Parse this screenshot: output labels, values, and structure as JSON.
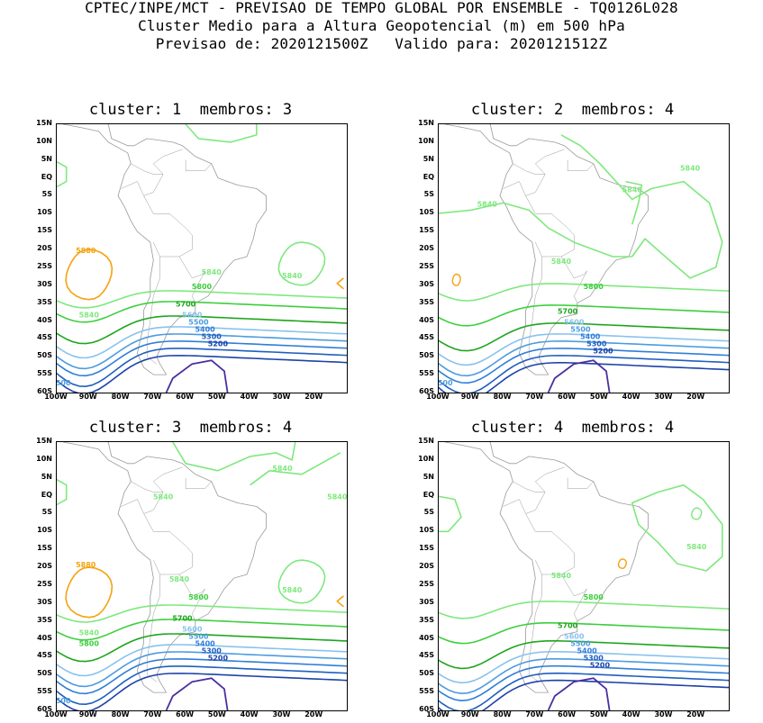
{
  "header": {
    "line1": "CPTEC/INPE/MCT - PREVISAO DE TEMPO GLOBAL POR ENSEMBLE - TQ0126L028",
    "line2": "Cluster Medio para a Altura Geopotencial (m) em 500 hPa",
    "line3": "Previsao de: 2020121500Z   Valido para: 2020121512Z"
  },
  "axes": {
    "lat_labels": [
      "15N",
      "10N",
      "5N",
      "EQ",
      "5S",
      "10S",
      "15S",
      "20S",
      "25S",
      "30S",
      "35S",
      "40S",
      "45S",
      "50S",
      "55S",
      "60S"
    ],
    "lon_labels": [
      "100W",
      "90W",
      "80W",
      "70W",
      "60W",
      "50W",
      "40W",
      "30W",
      "20W"
    ],
    "lat_range": [
      15,
      -60
    ],
    "lon_range": [
      -100,
      -10
    ]
  },
  "colors": {
    "c5880": "#f5a20f",
    "c5840": "#7ee87e",
    "c5800": "#3ccf3c",
    "c5700": "#1ea51e",
    "c5600": "#88c2ee",
    "c5500": "#4c9be0",
    "c5400": "#2f7ed8",
    "c5300": "#1f5fc0",
    "c5200": "#1d43a8",
    "c5100": "#4b2ea0",
    "coast": "#9a9a9a"
  },
  "panels": [
    {
      "title": "cluster: 1  membros: 3",
      "labels": [
        {
          "text": "5880",
          "lon": -91,
          "lat": -21
        },
        {
          "text": "5840",
          "lon": -52,
          "lat": -27
        },
        {
          "text": "5840",
          "lon": -90,
          "lat": -39
        },
        {
          "text": "5840",
          "lon": -27,
          "lat": -28
        },
        {
          "text": "5800",
          "lon": -55,
          "lat": -31
        },
        {
          "text": "5700",
          "lon": -60,
          "lat": -36
        },
        {
          "text": "5600",
          "lon": -58,
          "lat": -39
        },
        {
          "text": "5500",
          "lon": -56,
          "lat": -41
        },
        {
          "text": "5400",
          "lon": -54,
          "lat": -43
        },
        {
          "text": "5300",
          "lon": -52,
          "lat": -45
        },
        {
          "text": "5200",
          "lon": -50,
          "lat": -47
        },
        {
          "text": "500",
          "lon": -98,
          "lat": -58
        }
      ]
    },
    {
      "title": "cluster: 2  membros: 4",
      "labels": [
        {
          "text": "5840",
          "lon": -22,
          "lat": 2
        },
        {
          "text": "5840",
          "lon": -40,
          "lat": -4
        },
        {
          "text": "5840",
          "lon": -85,
          "lat": -8
        },
        {
          "text": "5840",
          "lon": -62,
          "lat": -24
        },
        {
          "text": "5800",
          "lon": -52,
          "lat": -31
        },
        {
          "text": "5700",
          "lon": -60,
          "lat": -38
        },
        {
          "text": "5600",
          "lon": -58,
          "lat": -41
        },
        {
          "text": "5500",
          "lon": -56,
          "lat": -43
        },
        {
          "text": "5400",
          "lon": -53,
          "lat": -45
        },
        {
          "text": "5300",
          "lon": -51,
          "lat": -47
        },
        {
          "text": "5200",
          "lon": -49,
          "lat": -49
        },
        {
          "text": "500",
          "lon": -98,
          "lat": -58
        }
      ]
    },
    {
      "title": "cluster: 3  membros: 4",
      "labels": [
        {
          "text": "5840",
          "lon": -30,
          "lat": 7
        },
        {
          "text": "5840",
          "lon": -13,
          "lat": -1
        },
        {
          "text": "5840",
          "lon": -67,
          "lat": -1
        },
        {
          "text": "5880",
          "lon": -91,
          "lat": -20
        },
        {
          "text": "5840",
          "lon": -62,
          "lat": -24
        },
        {
          "text": "5840",
          "lon": -27,
          "lat": -27
        },
        {
          "text": "5800",
          "lon": -56,
          "lat": -29
        },
        {
          "text": "5840",
          "lon": -90,
          "lat": -39
        },
        {
          "text": "5800",
          "lon": -90,
          "lat": -42
        },
        {
          "text": "5700",
          "lon": -61,
          "lat": -35
        },
        {
          "text": "5600",
          "lon": -58,
          "lat": -38
        },
        {
          "text": "5500",
          "lon": -56,
          "lat": -40
        },
        {
          "text": "5400",
          "lon": -54,
          "lat": -42
        },
        {
          "text": "5300",
          "lon": -52,
          "lat": -44
        },
        {
          "text": "5200",
          "lon": -50,
          "lat": -46
        },
        {
          "text": "500",
          "lon": -98,
          "lat": -58
        }
      ]
    },
    {
      "title": "cluster: 4  membros: 4",
      "labels": [
        {
          "text": "5840",
          "lon": -20,
          "lat": -15
        },
        {
          "text": "5840",
          "lon": -62,
          "lat": -23
        },
        {
          "text": "5800",
          "lon": -52,
          "lat": -29
        },
        {
          "text": "5700",
          "lon": -60,
          "lat": -37
        },
        {
          "text": "5600",
          "lon": -58,
          "lat": -40
        },
        {
          "text": "5500",
          "lon": -56,
          "lat": -42
        },
        {
          "text": "5400",
          "lon": -54,
          "lat": -44
        },
        {
          "text": "5300",
          "lon": -52,
          "lat": -46
        },
        {
          "text": "5200",
          "lon": -50,
          "lat": -48
        }
      ]
    }
  ]
}
